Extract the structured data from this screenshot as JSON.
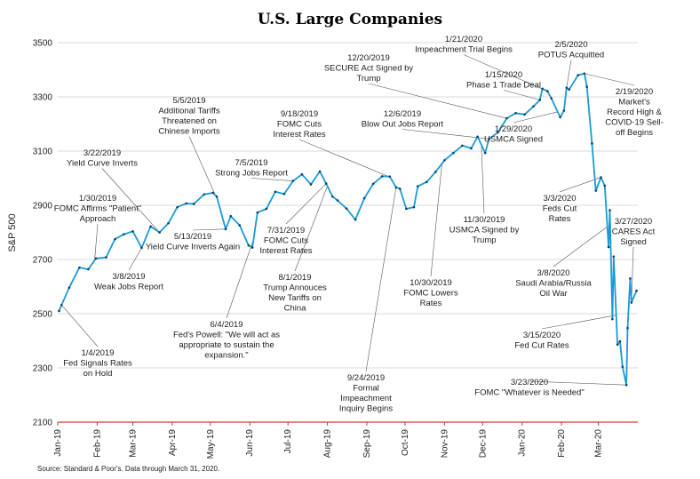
{
  "chart_data": {
    "type": "line",
    "title": "U.S. Large Companies",
    "ylabel": "S&P 500",
    "xlabel": "",
    "ylim": [
      2100,
      3500
    ],
    "yticks": [
      2100,
      2300,
      2500,
      2700,
      2900,
      3100,
      3300,
      3500
    ],
    "grid": true,
    "xticks": [
      {
        "label": "Jan-19",
        "date": "2019-01-01"
      },
      {
        "label": "Feb-19",
        "date": "2019-02-01"
      },
      {
        "label": "Mar-19",
        "date": "2019-03-01"
      },
      {
        "label": "Apr-19",
        "date": "2019-04-01"
      },
      {
        "label": "May-19",
        "date": "2019-05-01"
      },
      {
        "label": "Jun-19",
        "date": "2019-06-01"
      },
      {
        "label": "Jul-19",
        "date": "2019-07-01"
      },
      {
        "label": "Aug-19",
        "date": "2019-08-01"
      },
      {
        "label": "Sep-19",
        "date": "2019-09-01"
      },
      {
        "label": "Oct-19",
        "date": "2019-10-01"
      },
      {
        "label": "Nov-19",
        "date": "2019-11-01"
      },
      {
        "label": "Dec-19",
        "date": "2019-12-01"
      },
      {
        "label": "Jan-20",
        "date": "2020-01-01"
      },
      {
        "label": "Feb-20",
        "date": "2020-02-01"
      },
      {
        "label": "Mar-20",
        "date": "2020-03-01"
      }
    ],
    "series": [
      {
        "color": "#1a9ad6",
        "x": [
          "2019-01-02",
          "2019-01-04",
          "2019-01-10",
          "2019-01-18",
          "2019-01-25",
          "2019-01-31",
          "2019-02-08",
          "2019-02-15",
          "2019-02-22",
          "2019-03-01",
          "2019-03-08",
          "2019-03-15",
          "2019-03-22",
          "2019-03-29",
          "2019-04-05",
          "2019-04-12",
          "2019-04-18",
          "2019-04-26",
          "2019-05-03",
          "2019-05-06",
          "2019-05-13",
          "2019-05-17",
          "2019-05-24",
          "2019-05-31",
          "2019-06-03",
          "2019-06-07",
          "2019-06-14",
          "2019-06-21",
          "2019-06-28",
          "2019-07-05",
          "2019-07-12",
          "2019-07-19",
          "2019-07-26",
          "2019-07-31",
          "2019-08-05",
          "2019-08-09",
          "2019-08-16",
          "2019-08-23",
          "2019-08-30",
          "2019-09-06",
          "2019-09-13",
          "2019-09-19",
          "2019-09-24",
          "2019-09-27",
          "2019-10-02",
          "2019-10-08",
          "2019-10-11",
          "2019-10-18",
          "2019-10-25",
          "2019-11-01",
          "2019-11-08",
          "2019-11-15",
          "2019-11-22",
          "2019-11-27",
          "2019-12-03",
          "2019-12-06",
          "2019-12-13",
          "2019-12-20",
          "2019-12-27",
          "2020-01-03",
          "2020-01-10",
          "2020-01-15",
          "2020-01-17",
          "2020-01-21",
          "2020-01-24",
          "2020-01-31",
          "2020-02-03",
          "2020-02-05",
          "2020-02-07",
          "2020-02-14",
          "2020-02-19",
          "2020-02-21",
          "2020-02-25",
          "2020-02-28",
          "2020-03-03",
          "2020-03-06",
          "2020-03-09",
          "2020-03-10",
          "2020-03-12",
          "2020-03-13",
          "2020-03-16",
          "2020-03-18",
          "2020-03-20",
          "2020-03-23",
          "2020-03-24",
          "2020-03-26",
          "2020-03-27",
          "2020-03-31"
        ],
        "values": [
          2510,
          2532,
          2596,
          2670,
          2664,
          2704,
          2708,
          2775,
          2793,
          2804,
          2743,
          2822,
          2800,
          2834,
          2893,
          2907,
          2905,
          2940,
          2946,
          2932,
          2812,
          2860,
          2826,
          2752,
          2744,
          2873,
          2887,
          2950,
          2942,
          2990,
          3014,
          2977,
          3025,
          2980,
          2932,
          2918,
          2888,
          2847,
          2926,
          2979,
          3007,
          3006,
          2966,
          2961,
          2887,
          2893,
          2970,
          2986,
          3023,
          3066,
          3093,
          3120,
          3110,
          3153,
          3093,
          3145,
          3169,
          3221,
          3240,
          3235,
          3265,
          3289,
          3330,
          3321,
          3295,
          3225,
          3249,
          3334,
          3327,
          3380,
          3386,
          3337,
          3128,
          2954,
          3003,
          2972,
          2746,
          2882,
          2480,
          2711,
          2386,
          2398,
          2304,
          2237,
          2447,
          2630,
          2541,
          2585
        ]
      }
    ],
    "annotations": [
      {
        "date": "2019-01-04",
        "lines": [
          "1/4/2019",
          "Fed Signals Rates",
          "on Hold"
        ]
      },
      {
        "date": "2019-01-30",
        "lines": [
          "1/30/2019",
          "FOMC Affirms \"Patient\"",
          "Approach"
        ]
      },
      {
        "date": "2019-03-08",
        "lines": [
          "3/8/2019",
          "Weak Jobs Report"
        ]
      },
      {
        "date": "2019-03-22",
        "lines": [
          "3/22/2019",
          "Yield Curve Inverts"
        ]
      },
      {
        "date": "2019-05-05",
        "lines": [
          "5/5/2019",
          "Additional Tariffs",
          "Threatened on",
          "Chinese Imports"
        ]
      },
      {
        "date": "2019-05-13",
        "lines": [
          "5/13/2019",
          "Yield Curve Inverts Again"
        ]
      },
      {
        "date": "2019-06-04",
        "lines": [
          "6/4/2019",
          "Fed's Powell: \"We will act as",
          "appropriate to sustain the",
          "expansion.\""
        ]
      },
      {
        "date": "2019-07-05",
        "lines": [
          "7/5/2019",
          "Strong Jobs Report"
        ]
      },
      {
        "date": "2019-07-31",
        "lines": [
          "7/31/2019",
          "FOMC Cuts",
          "Interest Rates"
        ]
      },
      {
        "date": "2019-08-01",
        "lines": [
          "8/1/2019",
          "Trump Annouces",
          "New Tariffs on",
          "China"
        ]
      },
      {
        "date": "2019-09-18",
        "lines": [
          "9/18/2019",
          "FOMC Cuts",
          "Interest Rates"
        ]
      },
      {
        "date": "2019-09-24",
        "lines": [
          "9/24/2019",
          "Formal",
          "Impeachment",
          "Inquiry Begins"
        ]
      },
      {
        "date": "2019-10-30",
        "lines": [
          "10/30/2019",
          "FOMC Lowers",
          "Rates"
        ]
      },
      {
        "date": "2019-11-30",
        "lines": [
          "11/30/2019",
          "USMCA Signed by",
          "Trump"
        ]
      },
      {
        "date": "2019-12-06",
        "lines": [
          "12/6/2019",
          "Blow Out Jobs Report"
        ]
      },
      {
        "date": "2019-12-20",
        "lines": [
          "12/20/2019",
          "SECURE Act Signed by",
          "Trump"
        ]
      },
      {
        "date": "2020-01-15",
        "lines": [
          "1/15/2020",
          "Phase 1 Trade Deal"
        ]
      },
      {
        "date": "2020-01-21",
        "lines": [
          "1/21/2020",
          "Impeachment Trial Begins"
        ]
      },
      {
        "date": "2020-01-29",
        "lines": [
          "1/29/2020",
          "USMCA Signed"
        ]
      },
      {
        "date": "2020-02-05",
        "lines": [
          "2/5/2020",
          "POTUS Acquitted"
        ]
      },
      {
        "date": "2020-02-19",
        "lines": [
          "2/19/2020",
          "Market's",
          "Record High &",
          "COVID-19 Sell-",
          "off Begins"
        ]
      },
      {
        "date": "2020-03-03",
        "lines": [
          "3/3/2020",
          "Feds Cut",
          "Rates"
        ]
      },
      {
        "date": "2020-03-08",
        "lines": [
          "3/8/2020",
          "Saudi Arabia/Russia",
          "Oil War"
        ]
      },
      {
        "date": "2020-03-15",
        "lines": [
          "3/15/2020",
          "Fed Cut Rates"
        ]
      },
      {
        "date": "2020-03-23",
        "lines": [
          "3/23/2020",
          "FOMC \"Whatever is Needed\""
        ]
      },
      {
        "date": "2020-03-27",
        "lines": [
          "3/27/2020",
          "CARES Act",
          "Signed"
        ]
      }
    ],
    "source": "Source: Standard & Poor's. Data through March 31, 2020."
  }
}
